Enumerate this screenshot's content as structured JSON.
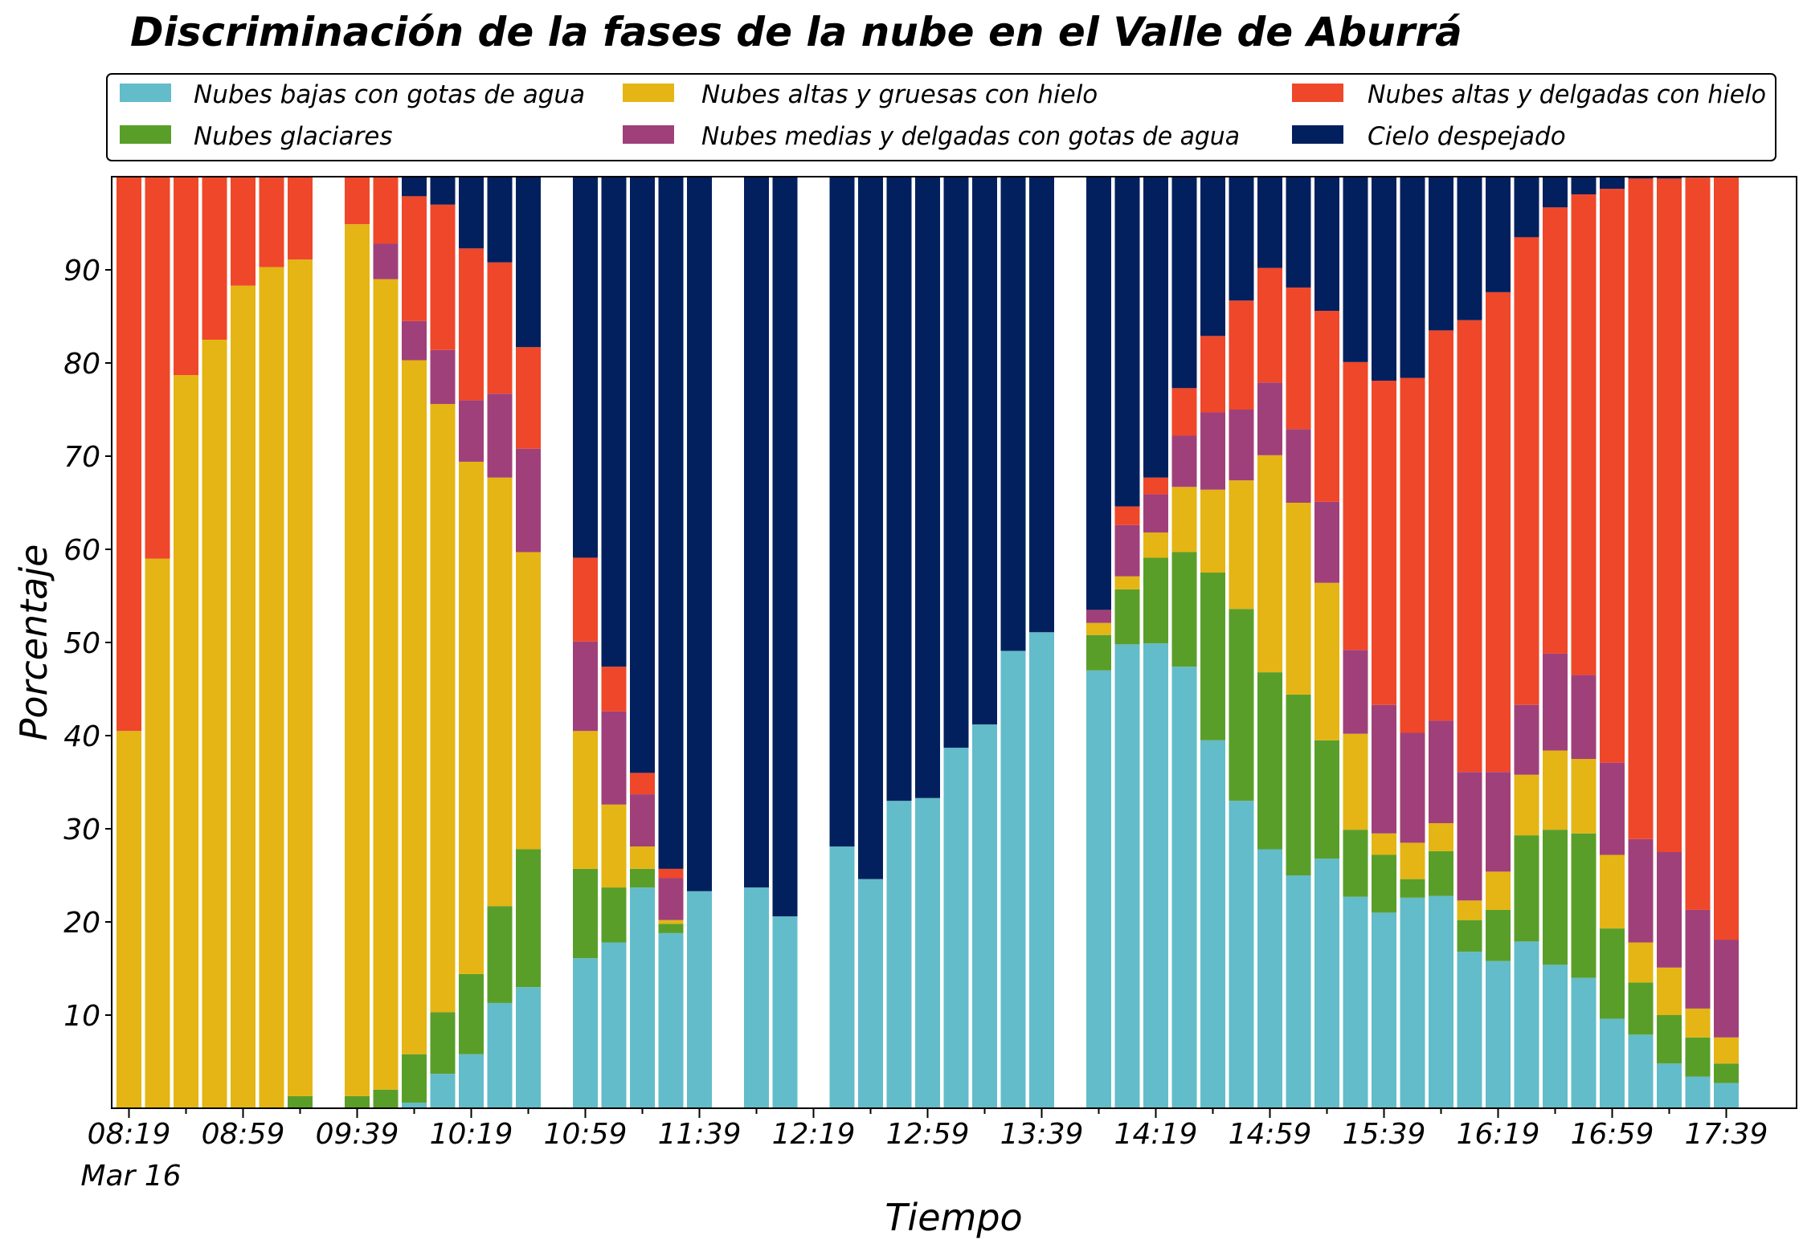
{
  "chart_data": {
    "type": "bar",
    "stacked": true,
    "title": "Discriminación de la fases de la nube en el Valle de Aburrá",
    "xlabel": "Tiempo",
    "ylabel": "Porcentaje",
    "ylim": [
      0,
      100
    ],
    "yticks": [
      10,
      20,
      30,
      40,
      50,
      60,
      70,
      80,
      90
    ],
    "xtick_labels": [
      "08:19",
      "08:59",
      "09:39",
      "10:19",
      "10:59",
      "11:39",
      "12:19",
      "12:59",
      "13:39",
      "14:19",
      "14:59",
      "15:39",
      "16:19",
      "16:59",
      "17:39"
    ],
    "date_label": "Mar 16",
    "legend_position": "top",
    "legend": [
      {
        "key": "bajas",
        "label": "Nubes bajas con gotas de agua",
        "color": "#63bcc9"
      },
      {
        "key": "glaciares",
        "label": "Nubes glaciares",
        "color": "#5a9e2a"
      },
      {
        "key": "gruesas",
        "label": "Nubes altas y gruesas con hielo",
        "color": "#e4b514"
      },
      {
        "key": "medias",
        "label": "Nubes medias y delgadas con gotas de agua",
        "color": "#a0407a"
      },
      {
        "key": "delgadas",
        "label": "Nubes altas y delgadas con hielo",
        "color": "#ef472a"
      },
      {
        "key": "despejado",
        "label": "Cielo despejado",
        "color": "#03205e"
      }
    ],
    "stack_order": [
      "bajas",
      "glaciares",
      "gruesas",
      "medias",
      "delgadas",
      "despejado"
    ],
    "bars": [
      {
        "time": "08:19",
        "bajas": 0,
        "glaciares": 0,
        "gruesas": 40.5,
        "medias": 0,
        "delgadas": 59.5,
        "despejado": 0
      },
      {
        "time": "08:29",
        "bajas": 0,
        "glaciares": 0,
        "gruesas": 59,
        "medias": 0,
        "delgadas": 41,
        "despejado": 0
      },
      {
        "time": "08:39",
        "bajas": 0,
        "glaciares": 0,
        "gruesas": 78.7,
        "medias": 0,
        "delgadas": 21.3,
        "despejado": 0
      },
      {
        "time": "08:49",
        "bajas": 0,
        "glaciares": 0,
        "gruesas": 82.5,
        "medias": 0,
        "delgadas": 17.5,
        "despejado": 0
      },
      {
        "time": "08:59",
        "bajas": 0,
        "glaciares": 0,
        "gruesas": 88.3,
        "medias": 0,
        "delgadas": 11.7,
        "despejado": 0
      },
      {
        "time": "09:09",
        "bajas": 0,
        "glaciares": 0,
        "gruesas": 90.3,
        "medias": 0,
        "delgadas": 9.7,
        "despejado": 0
      },
      {
        "time": "09:19",
        "bajas": 0,
        "glaciares": 1.3,
        "gruesas": 89.8,
        "medias": 0,
        "delgadas": 8.9,
        "despejado": 0
      },
      {
        "time": "09:39",
        "bajas": 0,
        "glaciares": 1.3,
        "gruesas": 93.6,
        "medias": 0,
        "delgadas": 5.1,
        "despejado": 0
      },
      {
        "time": "09:49",
        "bajas": 0,
        "glaciares": 2,
        "gruesas": 87,
        "medias": 3.8,
        "delgadas": 7.2,
        "despejado": 0
      },
      {
        "time": "09:59",
        "bajas": 0.6,
        "glaciares": 5.2,
        "gruesas": 74.5,
        "medias": 4.2,
        "delgadas": 13.4,
        "despejado": 2.1
      },
      {
        "time": "10:09",
        "bajas": 3.7,
        "glaciares": 6.6,
        "gruesas": 65.3,
        "medias": 5.8,
        "delgadas": 15.6,
        "despejado": 3
      },
      {
        "time": "10:19",
        "bajas": 5.8,
        "glaciares": 8.6,
        "gruesas": 55,
        "medias": 6.6,
        "delgadas": 16.3,
        "despejado": 7.7
      },
      {
        "time": "10:29",
        "bajas": 11.3,
        "glaciares": 10.4,
        "gruesas": 46,
        "medias": 9,
        "delgadas": 14.1,
        "despejado": 9.2
      },
      {
        "time": "10:39",
        "bajas": 13,
        "glaciares": 14.8,
        "gruesas": 31.9,
        "medias": 11.1,
        "delgadas": 10.9,
        "despejado": 18.3
      },
      {
        "time": "10:59",
        "bajas": 16.1,
        "glaciares": 9.6,
        "gruesas": 14.8,
        "medias": 9.6,
        "delgadas": 9,
        "despejado": 40.9
      },
      {
        "time": "11:09",
        "bajas": 17.8,
        "glaciares": 5.9,
        "gruesas": 8.9,
        "medias": 10,
        "delgadas": 4.8,
        "despejado": 52.6
      },
      {
        "time": "11:19",
        "bajas": 23.7,
        "glaciares": 2,
        "gruesas": 2.4,
        "medias": 5.6,
        "delgadas": 2.3,
        "despejado": 64
      },
      {
        "time": "11:29",
        "bajas": 18.8,
        "glaciares": 1,
        "gruesas": 0.4,
        "medias": 4.5,
        "delgadas": 1,
        "despejado": 74.3
      },
      {
        "time": "11:39",
        "bajas": 23.3,
        "glaciares": 0,
        "gruesas": 0,
        "medias": 0,
        "delgadas": 0,
        "despejado": 76.7
      },
      {
        "time": "11:59",
        "bajas": 23.7,
        "glaciares": 0,
        "gruesas": 0,
        "medias": 0,
        "delgadas": 0,
        "despejado": 76.3
      },
      {
        "time": "12:09",
        "bajas": 20.6,
        "glaciares": 0,
        "gruesas": 0,
        "medias": 0,
        "delgadas": 0,
        "despejado": 79.4
      },
      {
        "time": "12:29",
        "bajas": 28.1,
        "glaciares": 0,
        "gruesas": 0,
        "medias": 0,
        "delgadas": 0,
        "despejado": 71.9
      },
      {
        "time": "12:39",
        "bajas": 24.6,
        "glaciares": 0,
        "gruesas": 0,
        "medias": 0,
        "delgadas": 0,
        "despejado": 75.4
      },
      {
        "time": "12:49",
        "bajas": 33,
        "glaciares": 0,
        "gruesas": 0,
        "medias": 0,
        "delgadas": 0,
        "despejado": 67
      },
      {
        "time": "12:59",
        "bajas": 33.3,
        "glaciares": 0,
        "gruesas": 0,
        "medias": 0,
        "delgadas": 0,
        "despejado": 66.7
      },
      {
        "time": "13:09",
        "bajas": 38.7,
        "glaciares": 0,
        "gruesas": 0,
        "medias": 0,
        "delgadas": 0,
        "despejado": 61.3
      },
      {
        "time": "13:19",
        "bajas": 41.2,
        "glaciares": 0,
        "gruesas": 0,
        "medias": 0,
        "delgadas": 0,
        "despejado": 58.8
      },
      {
        "time": "13:29",
        "bajas": 49.1,
        "glaciares": 0,
        "gruesas": 0,
        "medias": 0,
        "delgadas": 0,
        "despejado": 50.9
      },
      {
        "time": "13:39",
        "bajas": 51.1,
        "glaciares": 0,
        "gruesas": 0,
        "medias": 0,
        "delgadas": 0,
        "despejado": 48.9
      },
      {
        "time": "13:59",
        "bajas": 47,
        "glaciares": 3.8,
        "gruesas": 1.3,
        "medias": 1.4,
        "delgadas": 0,
        "despejado": 46.5
      },
      {
        "time": "14:09",
        "bajas": 49.8,
        "glaciares": 5.9,
        "gruesas": 1.4,
        "medias": 5.5,
        "delgadas": 2,
        "despejado": 35.4
      },
      {
        "time": "14:19",
        "bajas": 49.9,
        "glaciares": 9.2,
        "gruesas": 2.7,
        "medias": 4.1,
        "delgadas": 1.8,
        "despejado": 32.3
      },
      {
        "time": "14:29",
        "bajas": 47.4,
        "glaciares": 12.3,
        "gruesas": 7,
        "medias": 5.5,
        "delgadas": 5.1,
        "despejado": 22.7
      },
      {
        "time": "14:39",
        "bajas": 39.5,
        "glaciares": 18,
        "gruesas": 8.9,
        "medias": 8.3,
        "delgadas": 8.2,
        "despejado": 17.1
      },
      {
        "time": "14:49",
        "bajas": 33,
        "glaciares": 20.6,
        "gruesas": 13.8,
        "medias": 7.6,
        "delgadas": 11.7,
        "despejado": 13.3
      },
      {
        "time": "14:59",
        "bajas": 27.8,
        "glaciares": 19,
        "gruesas": 23.3,
        "medias": 7.8,
        "delgadas": 12.3,
        "despejado": 9.8
      },
      {
        "time": "15:09",
        "bajas": 25,
        "glaciares": 19.4,
        "gruesas": 20.6,
        "medias": 7.9,
        "delgadas": 15.2,
        "despejado": 11.9
      },
      {
        "time": "15:19",
        "bajas": 26.8,
        "glaciares": 12.7,
        "gruesas": 16.9,
        "medias": 8.7,
        "delgadas": 20.5,
        "despejado": 14.4
      },
      {
        "time": "15:29",
        "bajas": 22.7,
        "glaciares": 7.2,
        "gruesas": 10.3,
        "medias": 9,
        "delgadas": 30.9,
        "despejado": 19.9
      },
      {
        "time": "15:39",
        "bajas": 21,
        "glaciares": 6.2,
        "gruesas": 2.3,
        "medias": 13.8,
        "delgadas": 34.8,
        "despejado": 21.9
      },
      {
        "time": "15:49",
        "bajas": 22.6,
        "glaciares": 2,
        "gruesas": 3.9,
        "medias": 11.8,
        "delgadas": 38.1,
        "despejado": 21.6
      },
      {
        "time": "15:59",
        "bajas": 22.8,
        "glaciares": 4.8,
        "gruesas": 3,
        "medias": 11,
        "delgadas": 41.9,
        "despejado": 16.5
      },
      {
        "time": "16:09",
        "bajas": 16.8,
        "glaciares": 3.4,
        "gruesas": 2.1,
        "medias": 13.8,
        "delgadas": 48.5,
        "despejado": 15.4
      },
      {
        "time": "16:19",
        "bajas": 15.8,
        "glaciares": 5.5,
        "gruesas": 4.1,
        "medias": 10.7,
        "delgadas": 51.5,
        "despejado": 12.4
      },
      {
        "time": "16:29",
        "bajas": 17.9,
        "glaciares": 11.4,
        "gruesas": 6.5,
        "medias": 7.5,
        "delgadas": 50.2,
        "despejado": 6.5
      },
      {
        "time": "16:39",
        "bajas": 15.4,
        "glaciares": 14.5,
        "gruesas": 8.5,
        "medias": 10.4,
        "delgadas": 47.9,
        "despejado": 3.3
      },
      {
        "time": "16:49",
        "bajas": 14,
        "glaciares": 15.5,
        "gruesas": 8,
        "medias": 9,
        "delgadas": 51.6,
        "despejado": 1.9
      },
      {
        "time": "16:59",
        "bajas": 9.6,
        "glaciares": 9.7,
        "gruesas": 7.9,
        "medias": 9.9,
        "delgadas": 61.6,
        "despejado": 1.3
      },
      {
        "time": "17:09",
        "bajas": 7.9,
        "glaciares": 5.6,
        "gruesas": 4.3,
        "medias": 11.1,
        "delgadas": 70.9,
        "despejado": 0.2
      },
      {
        "time": "17:19",
        "bajas": 4.8,
        "glaciares": 5.2,
        "gruesas": 5.1,
        "medias": 12.4,
        "delgadas": 72.3,
        "despejado": 0.2
      },
      {
        "time": "17:29",
        "bajas": 3.4,
        "glaciares": 4.2,
        "gruesas": 3.1,
        "medias": 10.6,
        "delgadas": 78.6,
        "despejado": 0.1
      },
      {
        "time": "17:39",
        "bajas": 2.7,
        "glaciares": 2.1,
        "gruesas": 2.8,
        "medias": 10.5,
        "delgadas": 81.9,
        "despejado": 0
      }
    ]
  }
}
